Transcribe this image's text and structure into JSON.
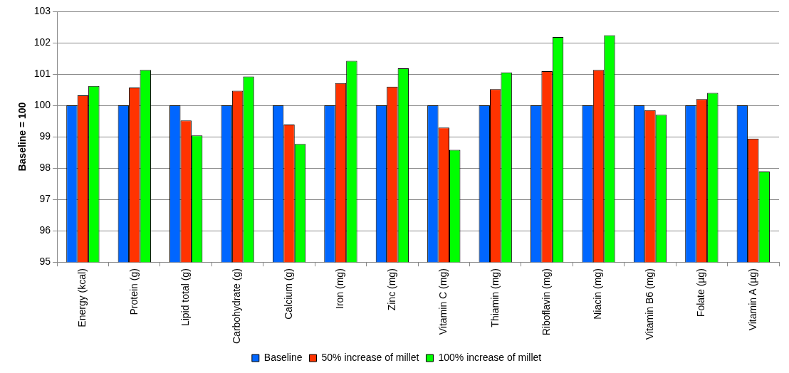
{
  "chart_data": {
    "type": "bar",
    "ylabel": "Baseline = 100",
    "categories": [
      "Energy (kcal)",
      "Protein (g)",
      "Lipid total (g)",
      "Carbohydrate (g)",
      "Calcium (g)",
      "Iron (mg)",
      "Zinc (mg)",
      "Vitamin C (mg)",
      "Thiamin (mg)",
      "Riboflavin (mg)",
      "Niacin (mg)",
      "Vitamin B6 (mg)",
      "Folate (µg)",
      "Vitamin A (µg)"
    ],
    "series": [
      {
        "name": "Baseline",
        "color": "#0066ff",
        "values": [
          100,
          100,
          100,
          100,
          100,
          100,
          100,
          100,
          100,
          100,
          100,
          100,
          100,
          100
        ]
      },
      {
        "name": "50% increase of millet",
        "color": "#ff3300",
        "values": [
          100.32,
          100.57,
          99.52,
          100.47,
          99.39,
          100.71,
          100.6,
          99.29,
          100.52,
          101.09,
          101.13,
          99.85,
          100.2,
          98.94
        ]
      },
      {
        "name": "100% increase of millet",
        "color": "#00ff00",
        "values": [
          100.62,
          101.13,
          99.04,
          100.92,
          98.77,
          101.42,
          101.18,
          98.58,
          101.05,
          102.18,
          102.24,
          99.7,
          100.4,
          97.89
        ]
      }
    ],
    "ylim": [
      95,
      103
    ],
    "yticks": [
      95,
      96,
      97,
      98,
      99,
      100,
      101,
      102,
      103
    ],
    "grid": "y",
    "legend": "bottom"
  }
}
